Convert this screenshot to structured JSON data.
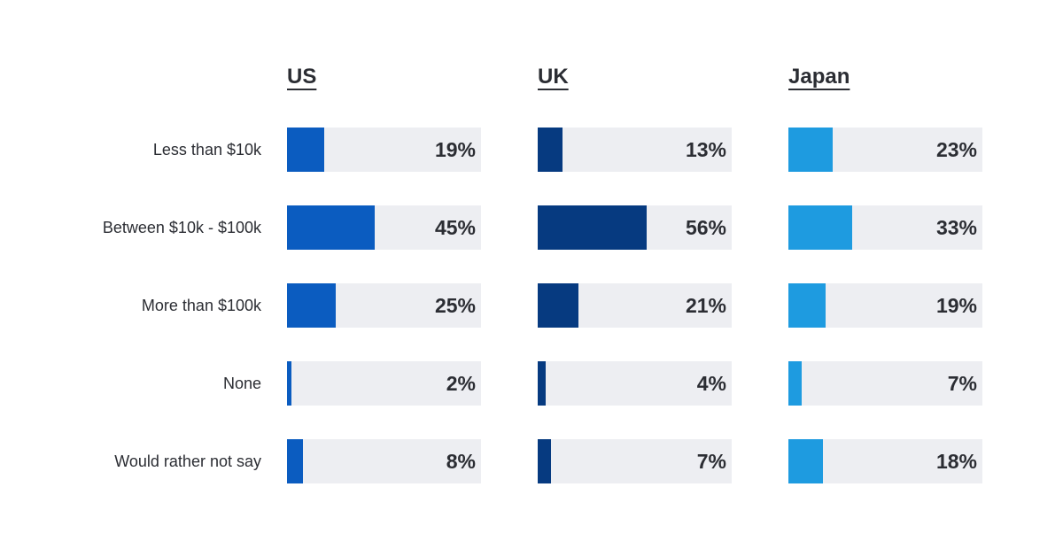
{
  "chart_data": {
    "type": "bar",
    "categories": [
      "Less than $10k",
      "Between $10k - $100k",
      "More than $100k",
      "None",
      "Would rather not say"
    ],
    "series": [
      {
        "name": "US",
        "color": "#0b5cc0",
        "values": [
          19,
          45,
          25,
          2,
          8
        ],
        "labels": [
          "19%",
          "45%",
          "25%",
          "2%",
          "8%"
        ]
      },
      {
        "name": "UK",
        "color": "#063a80",
        "values": [
          13,
          56,
          21,
          4,
          7
        ],
        "labels": [
          "13%",
          "56%",
          "21%",
          "4%",
          "7%"
        ]
      },
      {
        "name": "Japan",
        "color": "#1e9be0",
        "values": [
          23,
          33,
          19,
          7,
          18
        ],
        "labels": [
          "23%",
          "33%",
          "19%",
          "7%",
          "18%"
        ]
      }
    ],
    "xlim": [
      0,
      100
    ],
    "track_color": "#edeef2"
  }
}
